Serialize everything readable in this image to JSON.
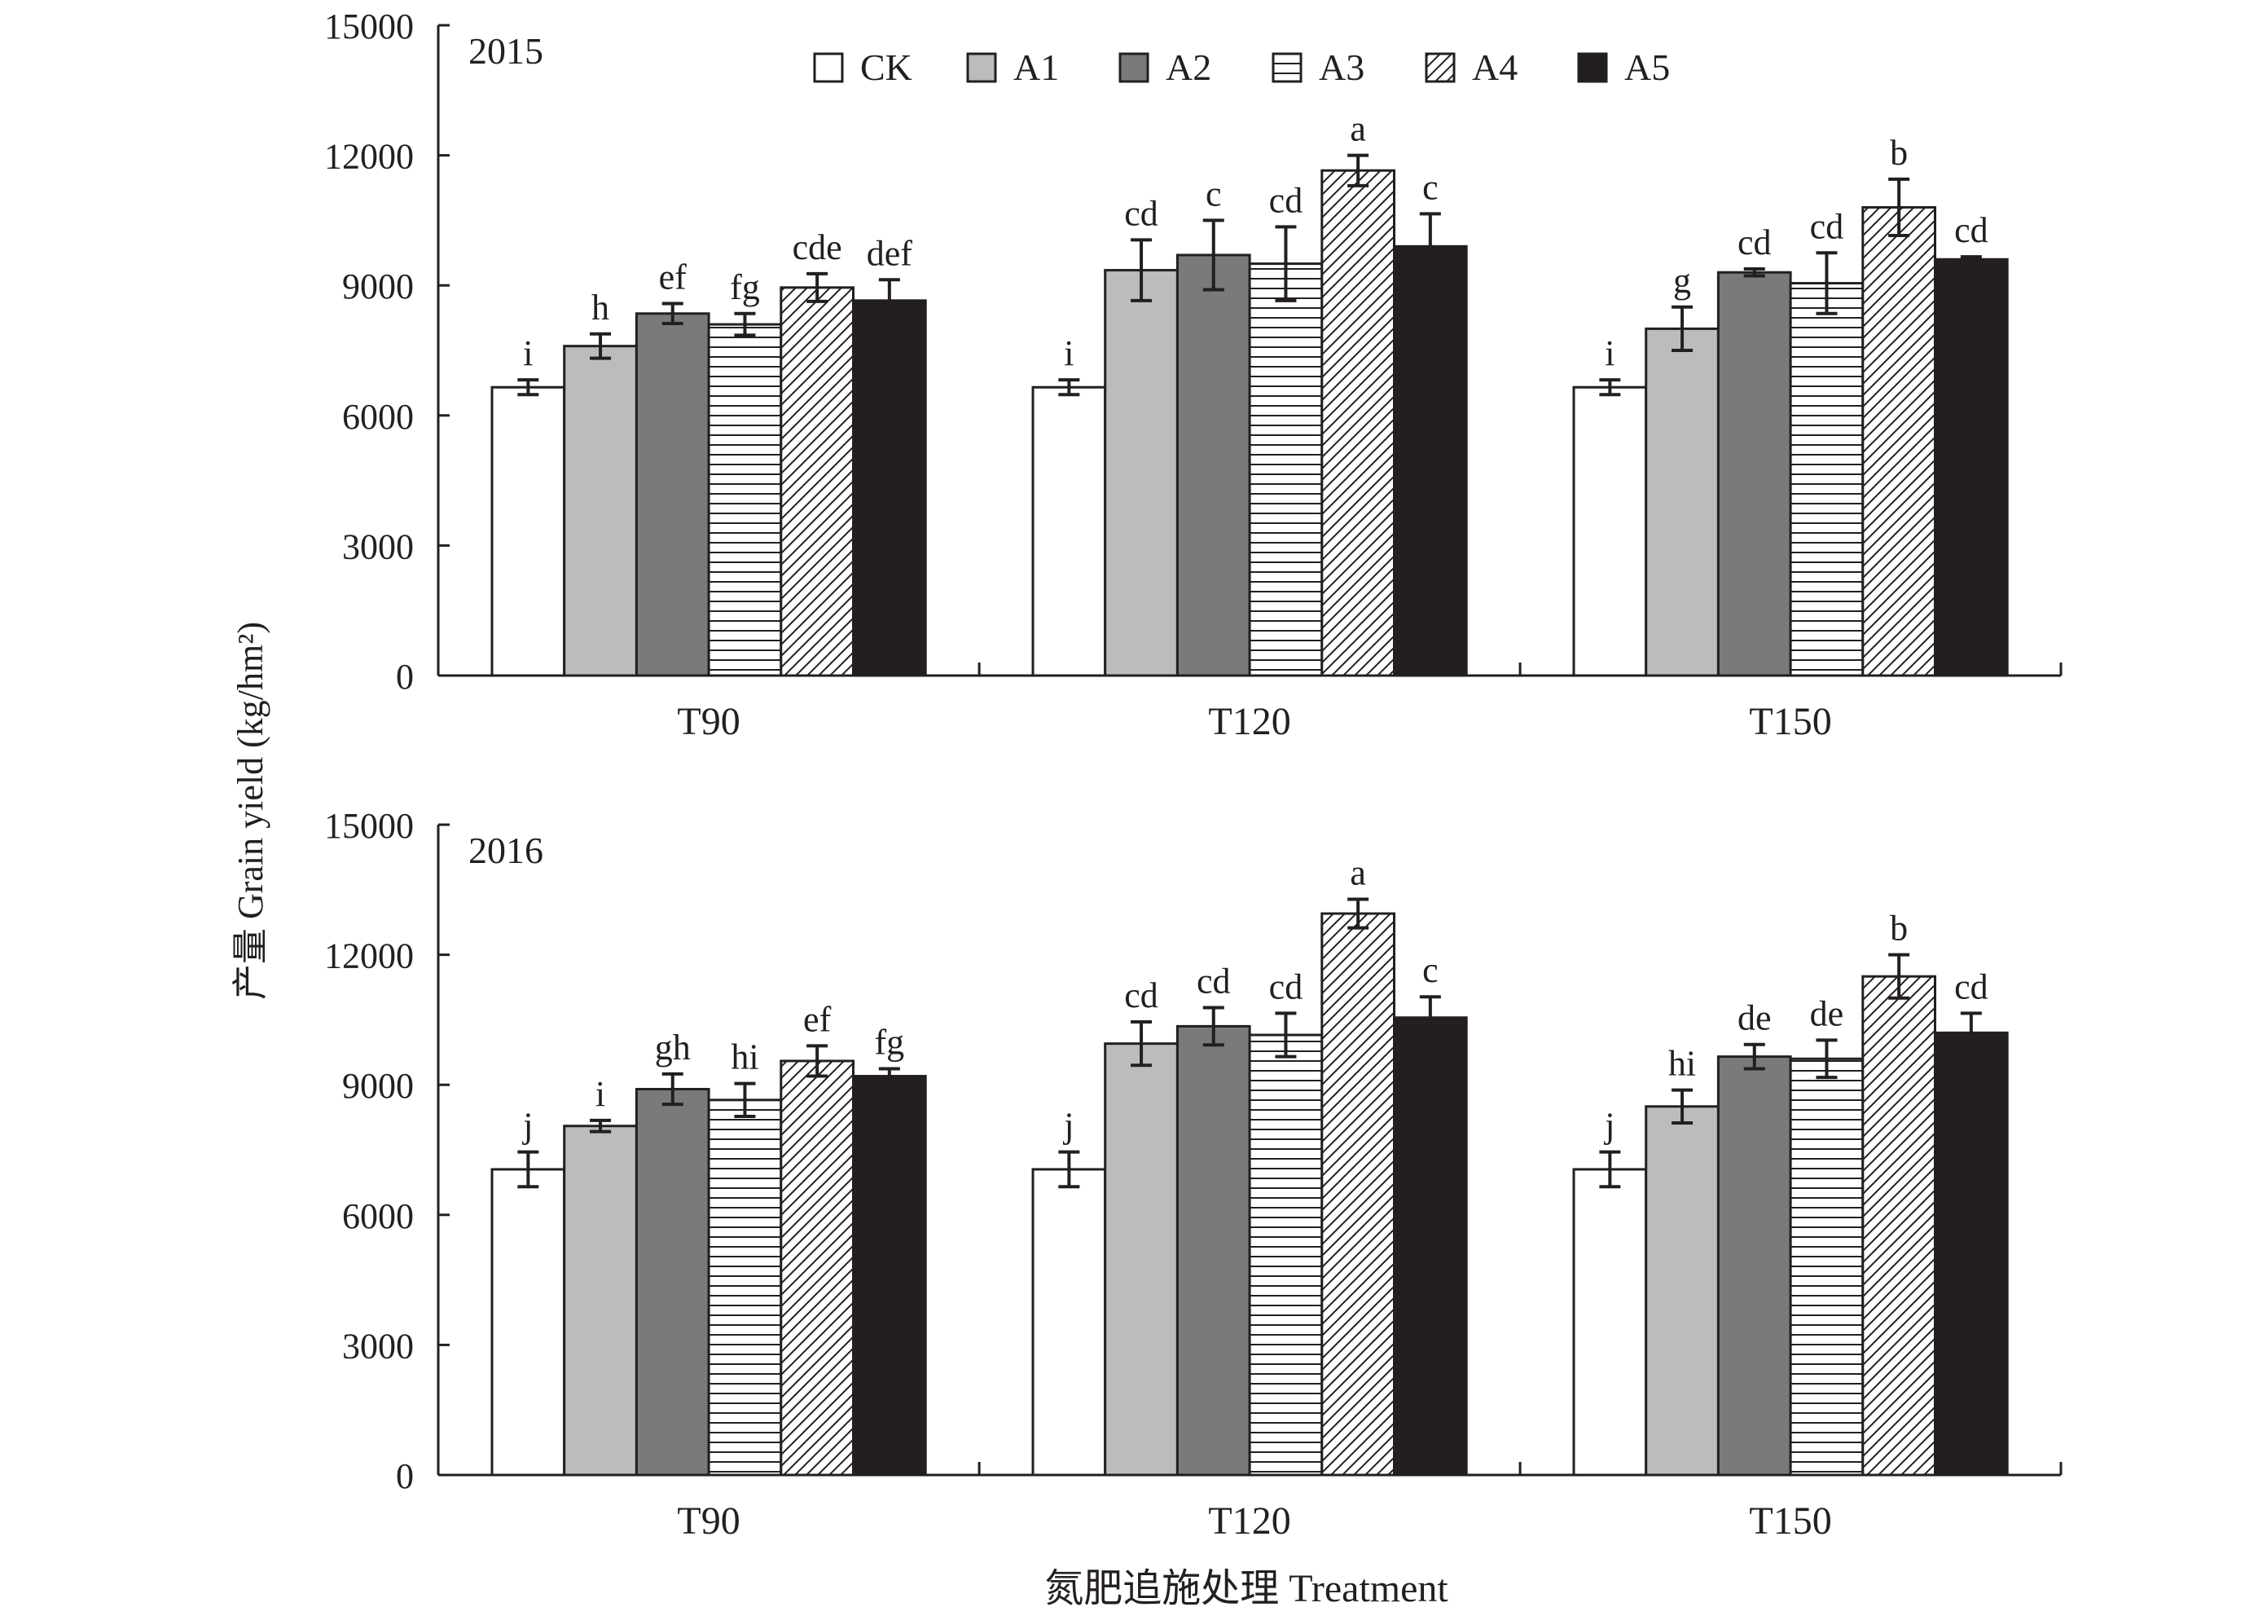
{
  "figure": {
    "ylabel": "产量 Grain yield (kg/hm²)",
    "xlabel": "氮肥追施处理 Treatment",
    "colors": {
      "ink": "#231f20",
      "CK": "#ffffff",
      "A1": "#bcbcbc",
      "A2": "#7a7a7a",
      "A3": "#ffffff",
      "A4": "#ffffff",
      "A5": "#231f20"
    }
  },
  "legend": {
    "placement": "top-center",
    "items": [
      {
        "key": "CK",
        "label": "CK",
        "pattern": "white"
      },
      {
        "key": "A1",
        "label": "A1",
        "pattern": "light-gray"
      },
      {
        "key": "A2",
        "label": "A2",
        "pattern": "dark-gray"
      },
      {
        "key": "A3",
        "label": "A3",
        "pattern": "horizontal-lines"
      },
      {
        "key": "A4",
        "label": "A4",
        "pattern": "diagonal-hatch"
      },
      {
        "key": "A5",
        "label": "A5",
        "pattern": "black"
      }
    ]
  },
  "chart_data": [
    {
      "type": "bar",
      "title": "2015",
      "xlabel": "氮肥追施处理 Treatment",
      "ylabel": "产量 Grain yield (kg/hm²)",
      "ylim": [
        0,
        15000
      ],
      "yticks": [
        0,
        3000,
        6000,
        9000,
        12000,
        15000
      ],
      "categories": [
        "T90",
        "T120",
        "T150"
      ],
      "series": [
        {
          "name": "CK",
          "values": [
            6650,
            6650,
            6650
          ],
          "errors": [
            170,
            170,
            170
          ],
          "letters": [
            "i",
            "i",
            "i"
          ]
        },
        {
          "name": "A1",
          "values": [
            7600,
            9350,
            8000
          ],
          "errors": [
            280,
            700,
            500
          ],
          "letters": [
            "h",
            "cd",
            "g"
          ]
        },
        {
          "name": "A2",
          "values": [
            8350,
            9700,
            9300
          ],
          "errors": [
            230,
            800,
            80
          ],
          "letters": [
            "ef",
            "c",
            "cd"
          ]
        },
        {
          "name": "A3",
          "values": [
            8100,
            9500,
            9050
          ],
          "errors": [
            250,
            850,
            700
          ],
          "letters": [
            "fg",
            "cd",
            "cd"
          ]
        },
        {
          "name": "A4",
          "values": [
            8950,
            11650,
            10800
          ],
          "errors": [
            320,
            350,
            650
          ],
          "letters": [
            "cde",
            "a",
            "b"
          ]
        },
        {
          "name": "A5",
          "values": [
            8650,
            9900,
            9600
          ],
          "errors": [
            480,
            750,
            60
          ],
          "letters": [
            "def",
            "c",
            "cd"
          ]
        }
      ]
    },
    {
      "type": "bar",
      "title": "2016",
      "xlabel": "氮肥追施处理 Treatment",
      "ylabel": "产量 Grain yield (kg/hm²)",
      "ylim": [
        0,
        15000
      ],
      "yticks": [
        0,
        3000,
        6000,
        9000,
        12000,
        15000
      ],
      "categories": [
        "T90",
        "T120",
        "T150"
      ],
      "series": [
        {
          "name": "CK",
          "values": [
            7050,
            7050,
            7050
          ],
          "errors": [
            400,
            400,
            400
          ],
          "letters": [
            "j",
            "j",
            "j"
          ]
        },
        {
          "name": "A1",
          "values": [
            8050,
            9950,
            8500
          ],
          "errors": [
            130,
            500,
            380
          ],
          "letters": [
            "i",
            "cd",
            "hi"
          ]
        },
        {
          "name": "A2",
          "values": [
            8900,
            10350,
            9650
          ],
          "errors": [
            350,
            430,
            280
          ],
          "letters": [
            "gh",
            "cd",
            "de"
          ]
        },
        {
          "name": "A3",
          "values": [
            8650,
            10150,
            9600
          ],
          "errors": [
            380,
            500,
            430
          ],
          "letters": [
            "hi",
            "cd",
            "de"
          ]
        },
        {
          "name": "A4",
          "values": [
            9550,
            12950,
            11500
          ],
          "errors": [
            350,
            330,
            500
          ],
          "letters": [
            "ef",
            "a",
            "b"
          ]
        },
        {
          "name": "A5",
          "values": [
            9200,
            10550,
            10200
          ],
          "errors": [
            170,
            480,
            450
          ],
          "letters": [
            "fg",
            "c",
            "cd"
          ]
        }
      ]
    }
  ]
}
